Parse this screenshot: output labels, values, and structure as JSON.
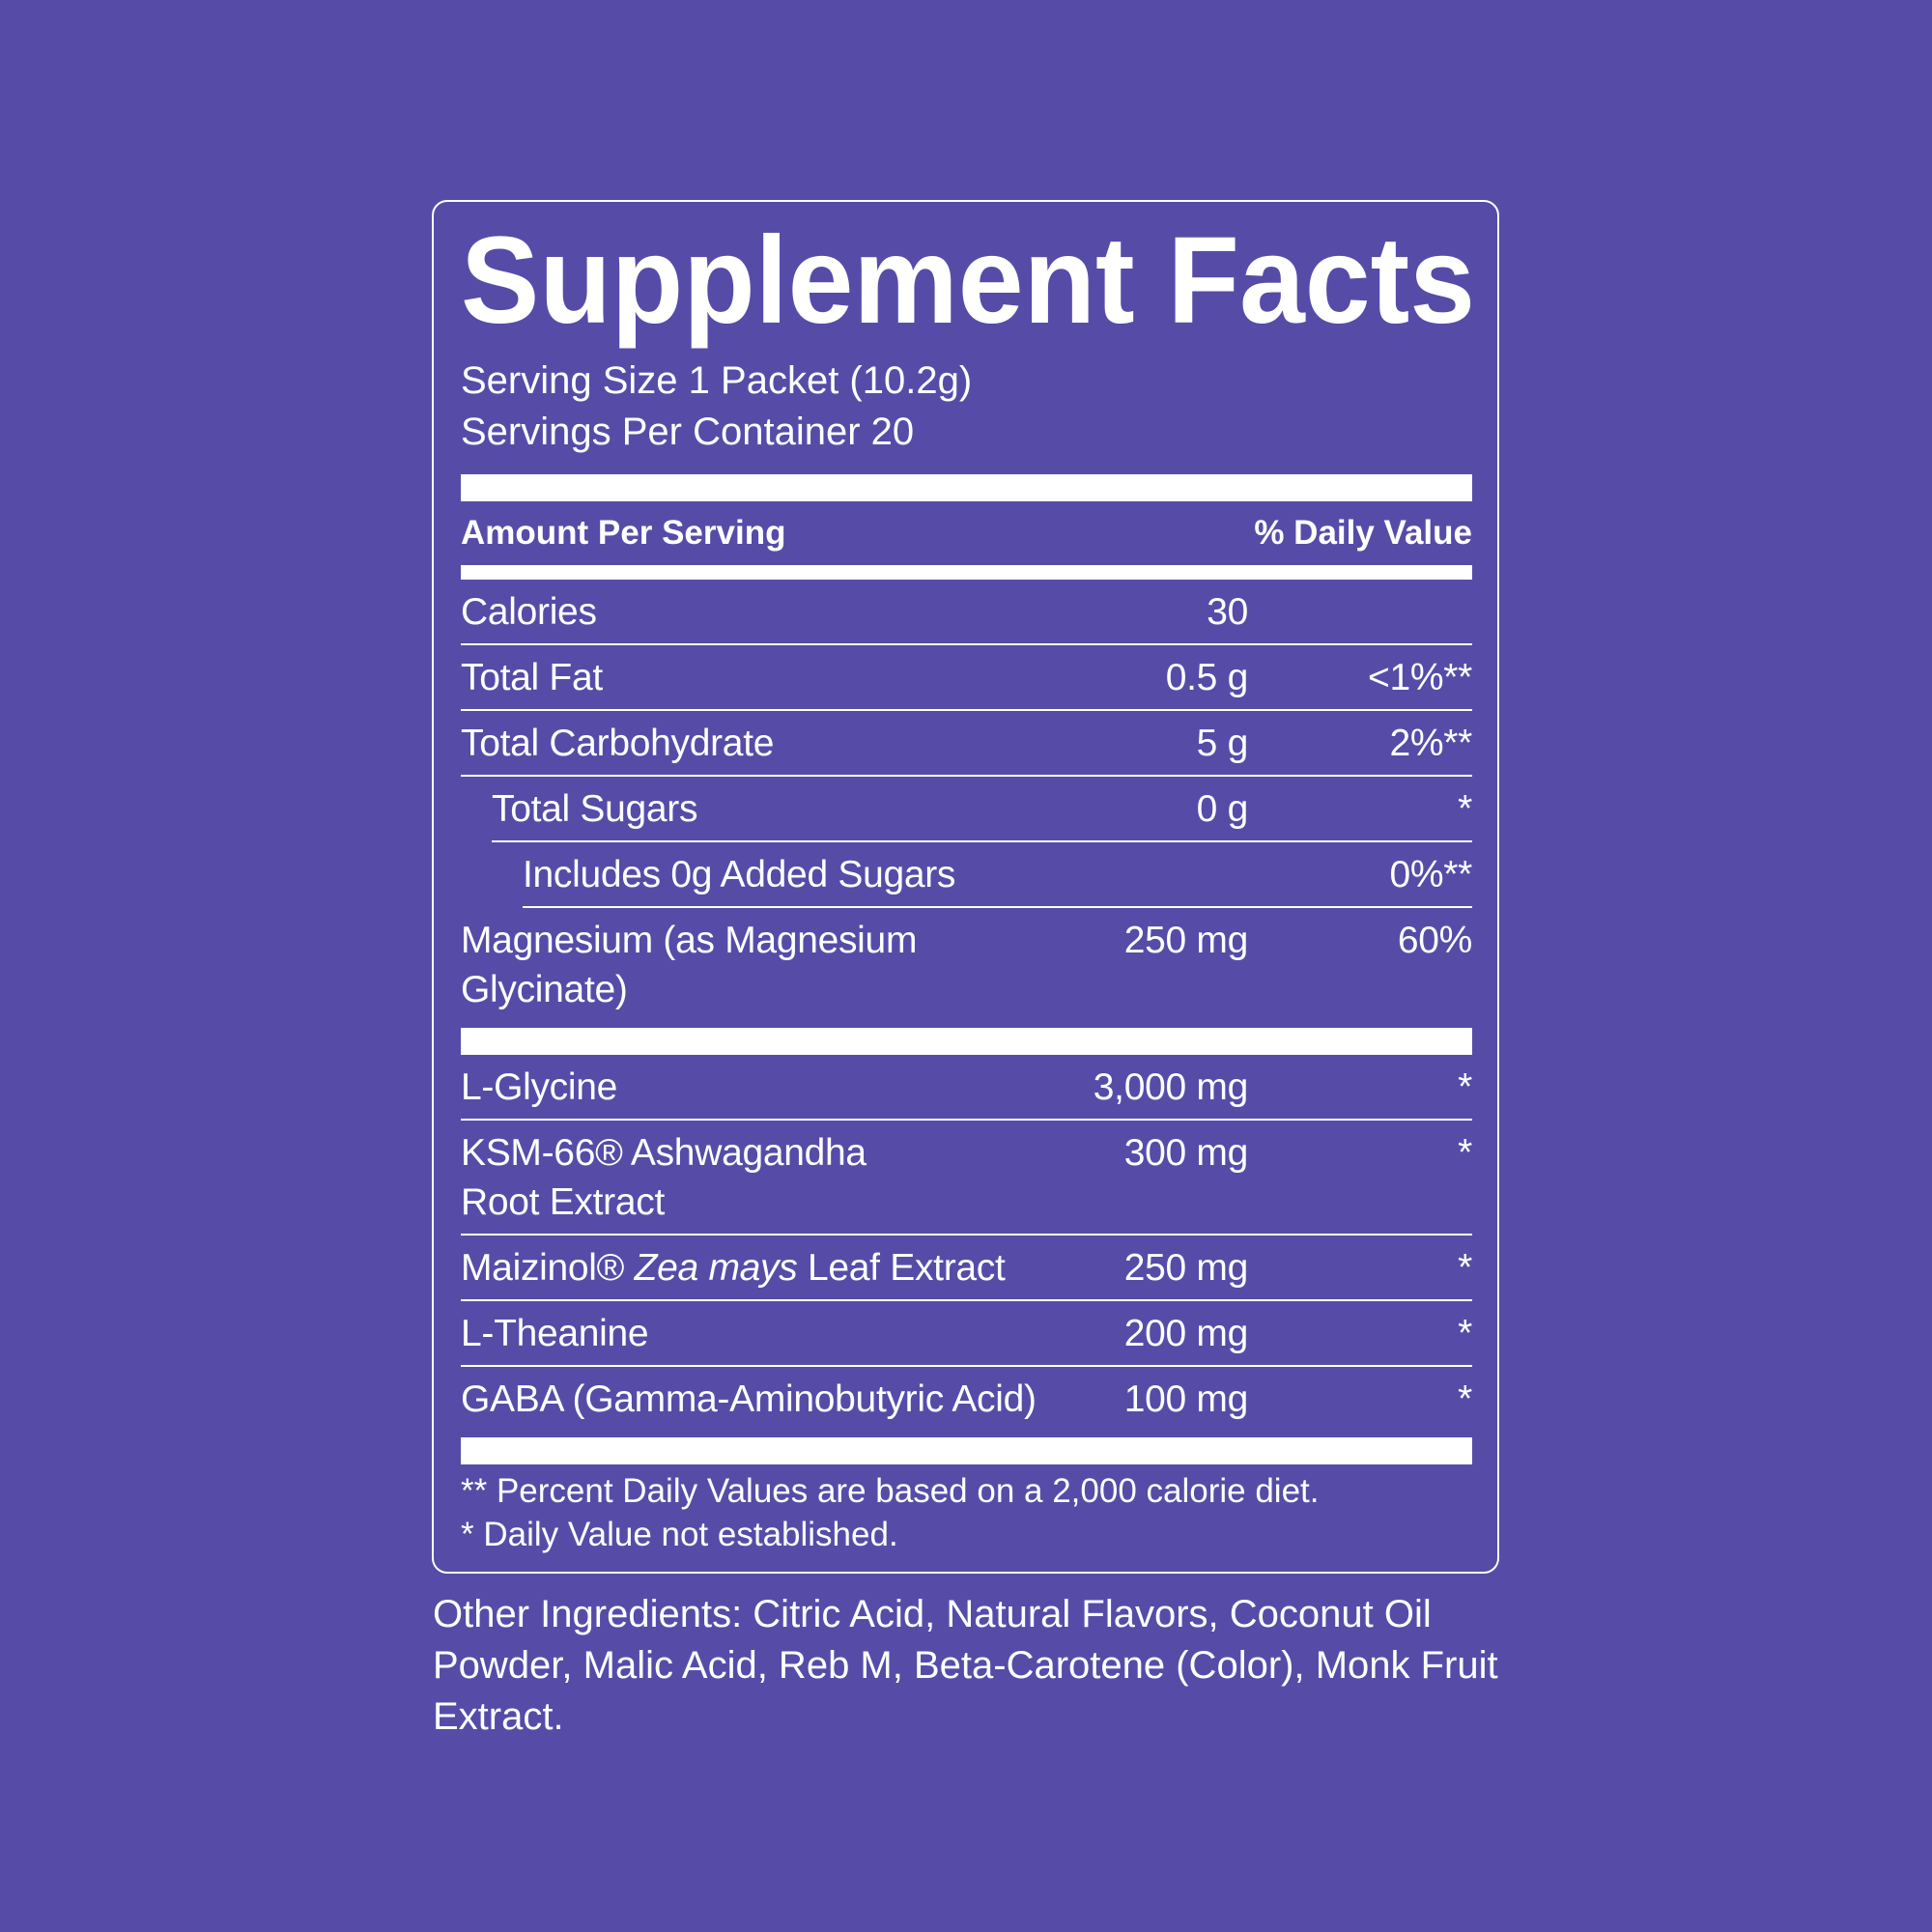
{
  "label": {
    "title": "Supplement Facts",
    "serving_size": "Serving Size 1 Packet (10.2g)",
    "servings_per_container": "Servings Per Container 20",
    "column_headers": {
      "amount": "Amount Per Serving",
      "daily_value": "% Daily Value"
    },
    "sections": [
      {
        "rows": [
          {
            "name": "Calories",
            "amount": "30"
          },
          {
            "name": "Total Fat",
            "amount": "0.5 g",
            "daily_value": "<1%**"
          },
          {
            "name": "Total Carbohydrate",
            "amount": "5 g",
            "daily_value": "2%**"
          },
          {
            "name": "Total Sugars",
            "amount": "0 g",
            "daily_value": "*",
            "indent": 1
          },
          {
            "name": "Includes 0g Added Sugars",
            "daily_value": "0%**",
            "indent": 2
          },
          {
            "name": [
              "Magnesium (as Magnesium",
              "Glycinate)"
            ],
            "amount": "250 mg",
            "daily_value": "60%"
          }
        ]
      },
      {
        "rows": [
          {
            "name": "L-Glycine",
            "amount": "3,000 mg",
            "daily_value": "*"
          },
          {
            "name": [
              "KSM-66® Ashwagandha",
              "Root Extract"
            ],
            "amount": "300 mg",
            "daily_value": "*"
          },
          {
            "name": {
              "plain": "Maizinol®",
              "italic": "Zea mays",
              "rest": "Leaf Extract"
            },
            "amount": "250 mg",
            "daily_value": "*"
          },
          {
            "name": "L-Theanine",
            "amount": "200 mg",
            "daily_value": "*"
          },
          {
            "name": "GABA (Gamma-Aminobutyric Acid)",
            "amount": "100 mg",
            "daily_value": "*"
          }
        ]
      }
    ],
    "footnotes": [
      "** Percent Daily Values are based on a 2,000 calorie diet.",
      "* Daily Value not established."
    ]
  },
  "other_ingredients": "Other Ingredients: Citric Acid, Natural Flavors, Coconut Oil Powder, Malic Acid, Reb M, Beta-Carotene (Color), Monk Fruit Extract."
}
